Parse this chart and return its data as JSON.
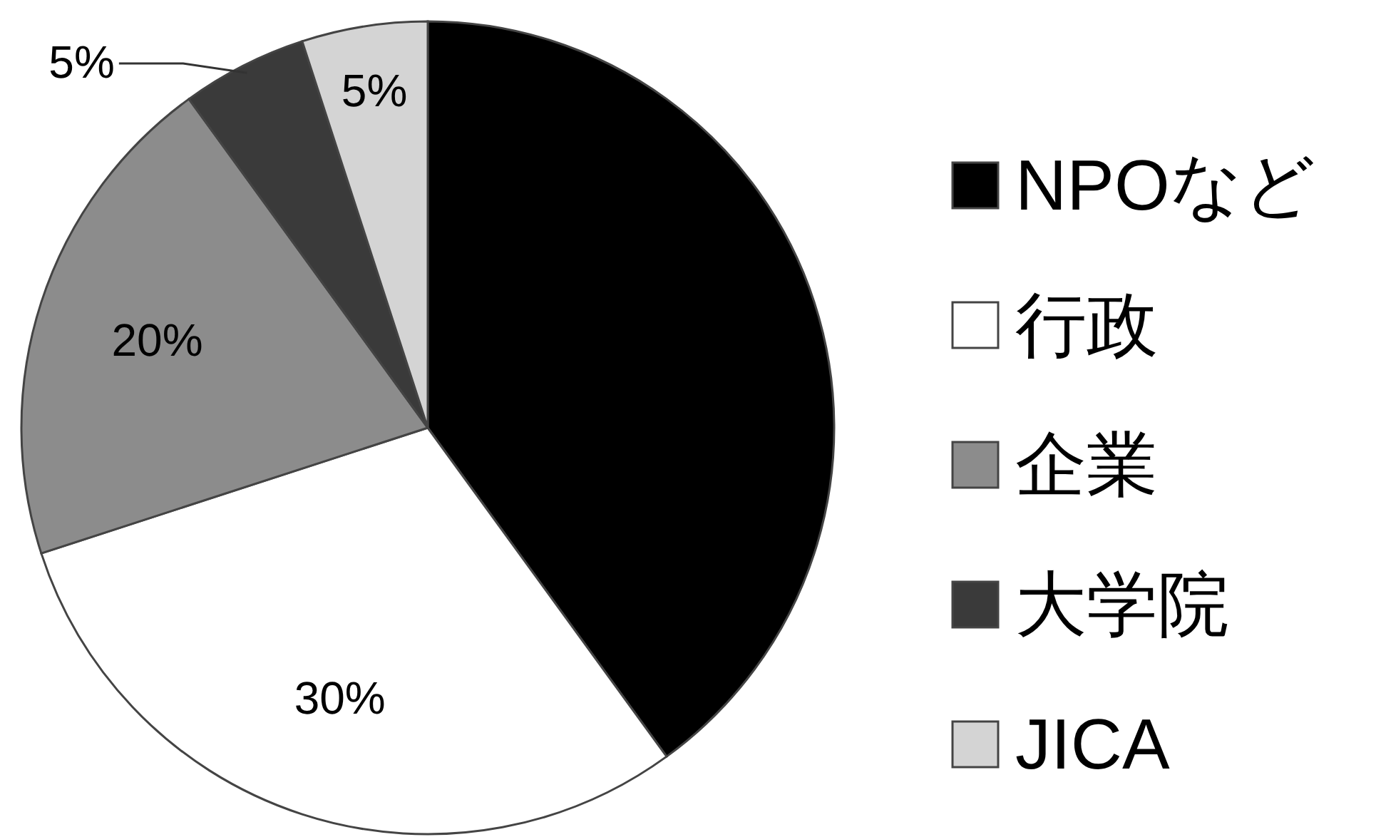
{
  "chart_data": {
    "type": "pie",
    "categories": [
      "NPOなど",
      "行政",
      "企業",
      "大学院",
      "JICA"
    ],
    "values": [
      40,
      30,
      20,
      5,
      5
    ],
    "colors": [
      "#000000",
      "#ffffff",
      "#8c8c8c",
      "#3a3a3a",
      "#d4d4d4"
    ],
    "value_labels": [
      null,
      "30%",
      "20%",
      "5%",
      "5%"
    ],
    "legend": "right"
  }
}
